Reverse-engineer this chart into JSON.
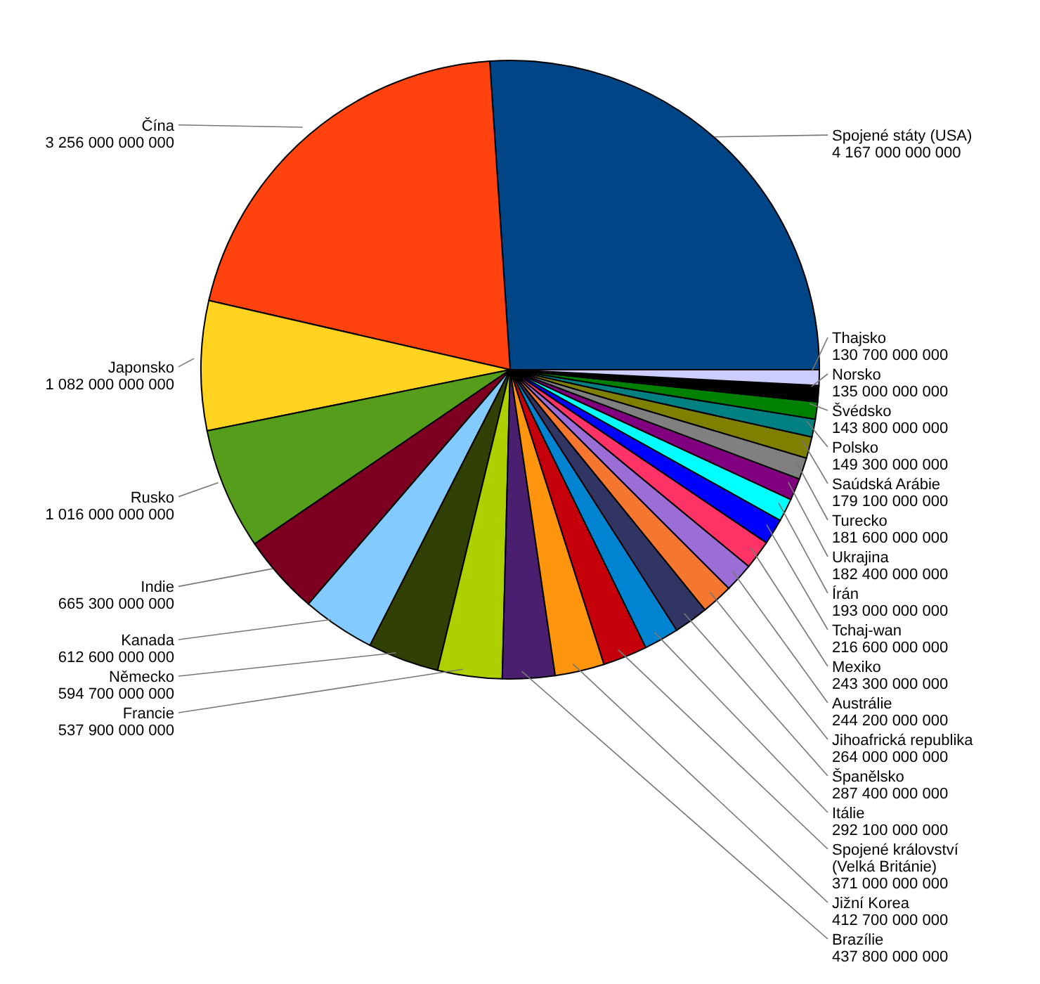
{
  "chart_data": {
    "type": "pie",
    "categories": [
      "Spojené státy (USA)",
      "Čína",
      "Japonsko",
      "Rusko",
      "Indie",
      "Kanada",
      "Německo",
      "Francie",
      "Brazílie",
      "Jižní Korea",
      "Spojené království (Velká Británie)",
      "Itálie",
      "Španělsko",
      "Jihoafrická republika",
      "Austrálie",
      "Mexiko",
      "Tchaj-wan",
      "Írán",
      "Ukrajina",
      "Turecko",
      "Saúdská Arábie",
      "Polsko",
      "Švédsko",
      "Norsko",
      "Thajsko"
    ],
    "values": [
      4167000000000,
      3256000000000,
      1082000000000,
      1016000000000,
      665300000000,
      612600000000,
      594700000000,
      537900000000,
      437800000000,
      412700000000,
      371000000000,
      292100000000,
      287400000000,
      264000000000,
      244200000000,
      243300000000,
      216600000000,
      193000000000,
      182400000000,
      181600000000,
      179100000000,
      149300000000,
      143800000000,
      135000000000,
      130700000000
    ],
    "colors": [
      "#004586",
      "#ff420e",
      "#ffd320",
      "#579d1c",
      "#7e0021",
      "#83caff",
      "#314004",
      "#aecf00",
      "#4b1f6f",
      "#ff950e",
      "#c5000b",
      "#0084d1",
      "#313563",
      "#f5762f",
      "#9b6dd6",
      "#ff3366",
      "#0000ff",
      "#00ffff",
      "#800080",
      "#808080",
      "#808000",
      "#008080",
      "#008000",
      "#000000",
      "#ccccff"
    ],
    "data_labels": true
  }
}
